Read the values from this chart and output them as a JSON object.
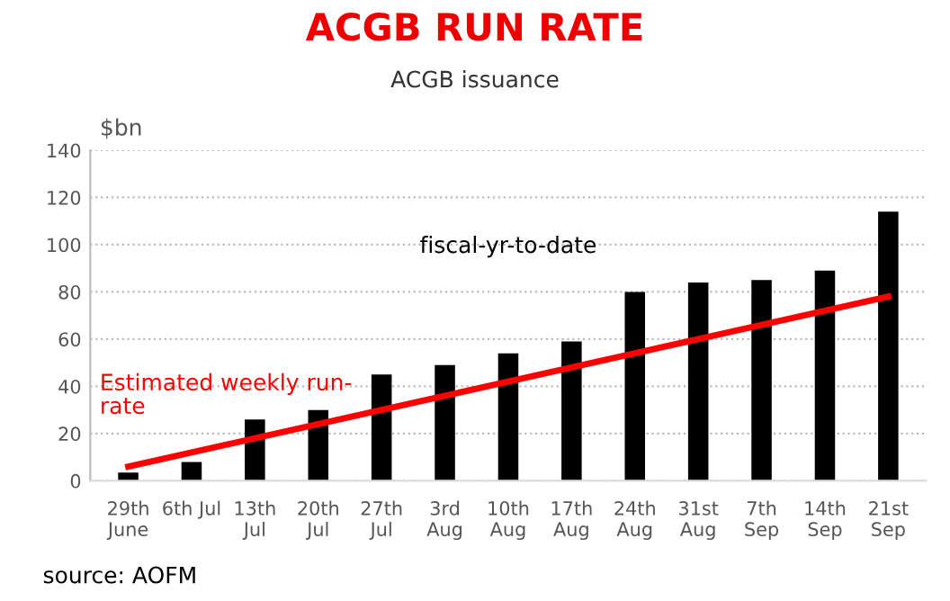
{
  "chart_data": {
    "type": "bar",
    "title": "ACGB RUN RATE",
    "subtitle": "ACGB issuance",
    "ylabel": "$bn",
    "categories": [
      "29th\nJune",
      "6th Jul",
      "13th\nJul",
      "20th\nJul",
      "27th\nJul",
      "3rd\nAug",
      "10th\nAug",
      "17th\nAug",
      "24th\nAug",
      "31st\nAug",
      "7th\nSep",
      "14th\nSep",
      "21st\nSep"
    ],
    "series": [
      {
        "name": "fiscal-yr-to-date",
        "color": "#000000",
        "values": [
          3.5,
          8,
          26,
          30,
          45,
          49,
          54,
          59,
          80,
          84,
          85,
          89,
          114
        ]
      },
      {
        "name": "Estimated weekly run-\nrate",
        "type": "line",
        "color": "#ff0000",
        "values": [
          6,
          12,
          18,
          24,
          30,
          36,
          42,
          48,
          54,
          60,
          66,
          72,
          78
        ]
      }
    ],
    "ylim": [
      0,
      140
    ],
    "yticks": [
      0,
      20,
      40,
      60,
      80,
      100,
      120,
      140
    ],
    "grid": "y",
    "legend": false,
    "marker": "none",
    "line_style": "solid",
    "annotations": [
      "source: AOFM"
    ]
  }
}
